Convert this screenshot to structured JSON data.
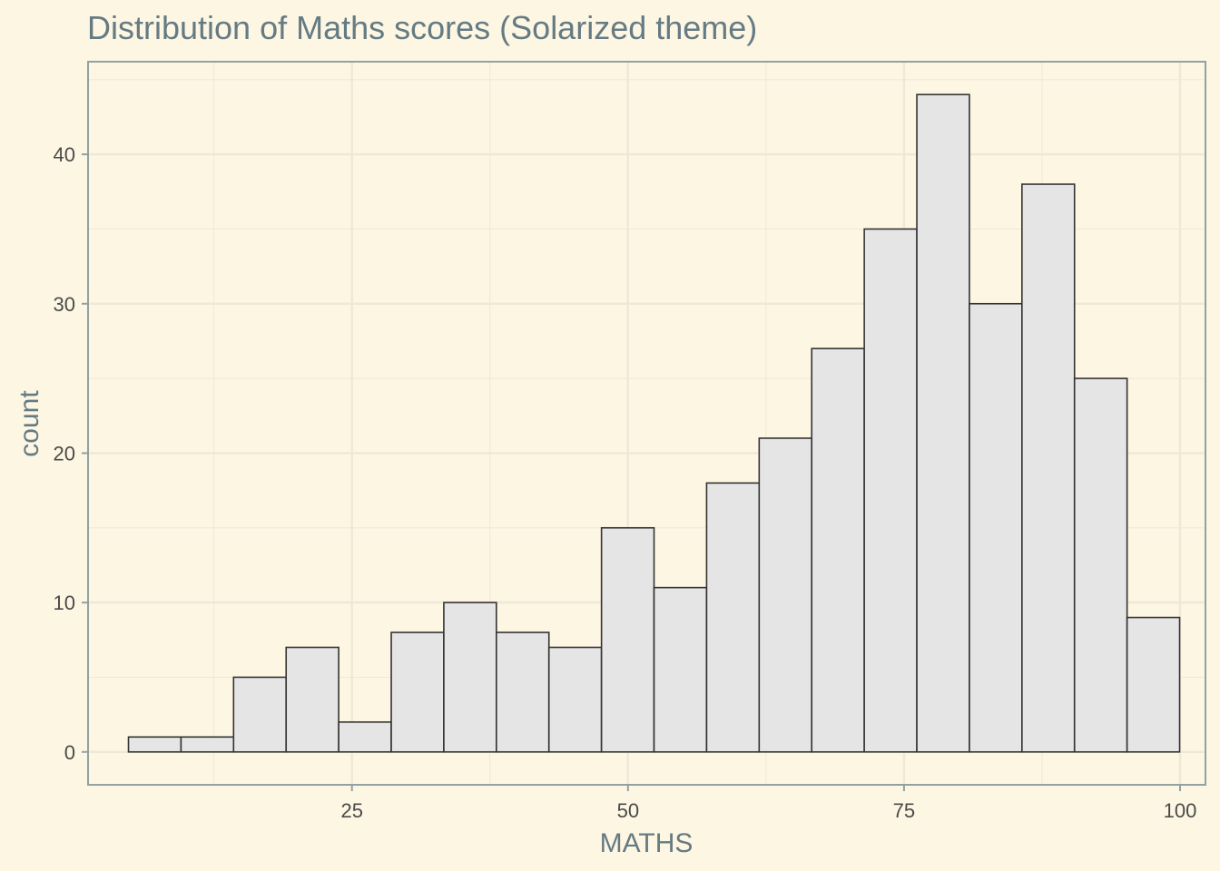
{
  "chart_data": {
    "type": "bar",
    "title": "Distribution of Maths scores (Solarized theme)",
    "xlabel": "MATHS",
    "ylabel": "count",
    "xlim": [
      1.1,
      102.3
    ],
    "ylim": [
      -2.2,
      46.2
    ],
    "x_ticks": [
      25,
      50,
      75,
      100
    ],
    "y_ticks": [
      0,
      10,
      20,
      30,
      40
    ],
    "bin_width": 4.76,
    "bins": [
      {
        "start": 4.76,
        "end": 9.52,
        "count": 1
      },
      {
        "start": 9.52,
        "end": 14.28,
        "count": 1
      },
      {
        "start": 14.28,
        "end": 19.04,
        "count": 5
      },
      {
        "start": 19.04,
        "end": 23.8,
        "count": 7
      },
      {
        "start": 23.8,
        "end": 28.56,
        "count": 2
      },
      {
        "start": 28.56,
        "end": 33.32,
        "count": 8
      },
      {
        "start": 33.32,
        "end": 38.08,
        "count": 10
      },
      {
        "start": 38.08,
        "end": 42.84,
        "count": 8
      },
      {
        "start": 42.84,
        "end": 47.6,
        "count": 7
      },
      {
        "start": 47.6,
        "end": 52.36,
        "count": 15
      },
      {
        "start": 52.36,
        "end": 57.12,
        "count": 11
      },
      {
        "start": 57.12,
        "end": 61.88,
        "count": 18
      },
      {
        "start": 61.88,
        "end": 66.64,
        "count": 21
      },
      {
        "start": 66.64,
        "end": 71.4,
        "count": 27
      },
      {
        "start": 71.4,
        "end": 76.16,
        "count": 35
      },
      {
        "start": 76.16,
        "end": 80.92,
        "count": 44
      },
      {
        "start": 80.92,
        "end": 85.68,
        "count": 30
      },
      {
        "start": 85.68,
        "end": 90.44,
        "count": 38
      },
      {
        "start": 90.44,
        "end": 95.2,
        "count": 25
      },
      {
        "start": 95.2,
        "end": 99.96,
        "count": 9
      }
    ],
    "grid": true,
    "colors": {
      "background": "#fdf6e3",
      "grid": "#eee8d5",
      "panel_border": "#93a1a1",
      "bar_fill": "#e5e5e5",
      "bar_stroke": "#333333",
      "text": "#657b83"
    }
  }
}
